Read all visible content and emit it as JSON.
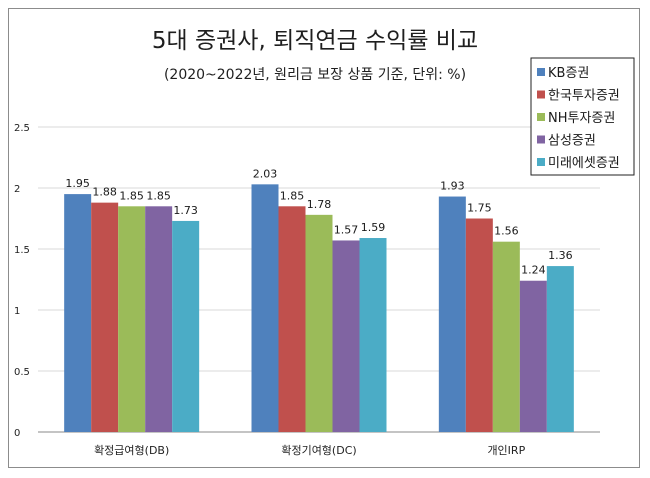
{
  "chart_data": {
    "type": "bar",
    "title": "5대 증권사, 퇴직연금 수익률 비교",
    "subtitle": "(2020~2022년, 원리금 보장 상품 기준, 단위: %)",
    "categories": [
      "확정급여형(DB)",
      "확정기여형(DC)",
      "개인IRP"
    ],
    "series": [
      {
        "name": "KB증권",
        "color": "#4f81bd",
        "values": [
          1.95,
          2.03,
          1.93
        ]
      },
      {
        "name": "한국투자증권",
        "color": "#c0504d",
        "values": [
          1.88,
          1.85,
          1.75
        ]
      },
      {
        "name": "NH투자증권",
        "color": "#9bbb59",
        "values": [
          1.85,
          1.78,
          1.56
        ]
      },
      {
        "name": "삼성증권",
        "color": "#8064a2",
        "values": [
          1.85,
          1.57,
          1.24
        ]
      },
      {
        "name": "미래에셋증권",
        "color": "#4bacc6",
        "values": [
          1.73,
          1.59,
          1.36
        ]
      }
    ],
    "ylim": [
      0,
      2.5
    ],
    "yticks": [
      "0",
      "0.5",
      "1",
      "1.5",
      "2",
      "2.5"
    ],
    "grid": true,
    "legend": "top-right"
  }
}
